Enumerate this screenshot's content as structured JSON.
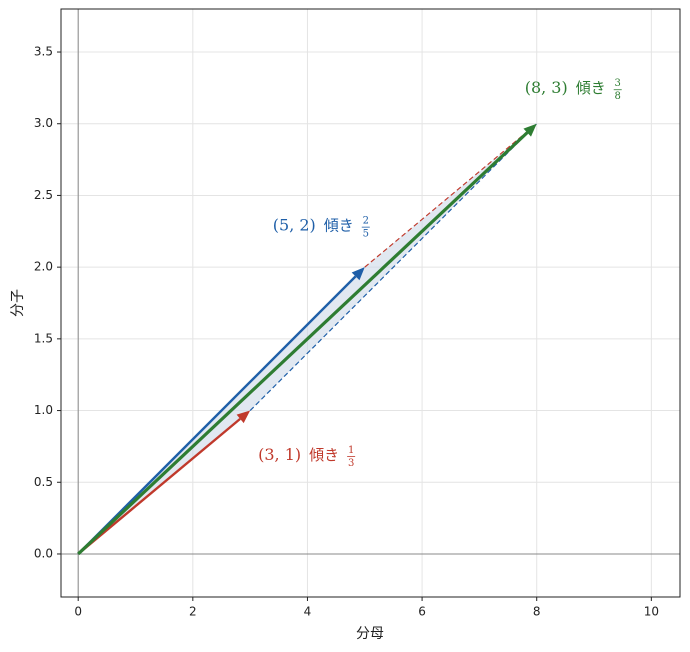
{
  "chart_data": {
    "type": "vector",
    "xlabel": "分母",
    "ylabel": "分子",
    "xlim": [
      -0.3,
      10.5
    ],
    "ylim": [
      -0.3,
      3.8
    ],
    "xticks": [
      0,
      2,
      4,
      6,
      8,
      10
    ],
    "yticks": [
      {
        "value": 0,
        "label": "0.0"
      },
      0.5,
      {
        "value": 1,
        "label": "1.0"
      },
      1.5,
      {
        "value": 2,
        "label": "2.0"
      },
      2.5,
      {
        "value": 3,
        "label": "3.0"
      },
      3.5
    ],
    "grid": true,
    "vectors": [
      {
        "x": 3,
        "y": 1,
        "color": "#c0392b",
        "point_label": "(3, 1)",
        "slope_label": "傾き",
        "numerator": 1,
        "denominator": 3
      },
      {
        "x": 5,
        "y": 2,
        "color": "#1f5fa8",
        "point_label": "(5, 2)",
        "slope_label": "傾き",
        "numerator": 2,
        "denominator": 5
      },
      {
        "x": 8,
        "y": 3,
        "color": "#2e7d32",
        "point_label": "(8, 3)",
        "slope_label": "傾き",
        "numerator": 3,
        "denominator": 8
      }
    ]
  }
}
